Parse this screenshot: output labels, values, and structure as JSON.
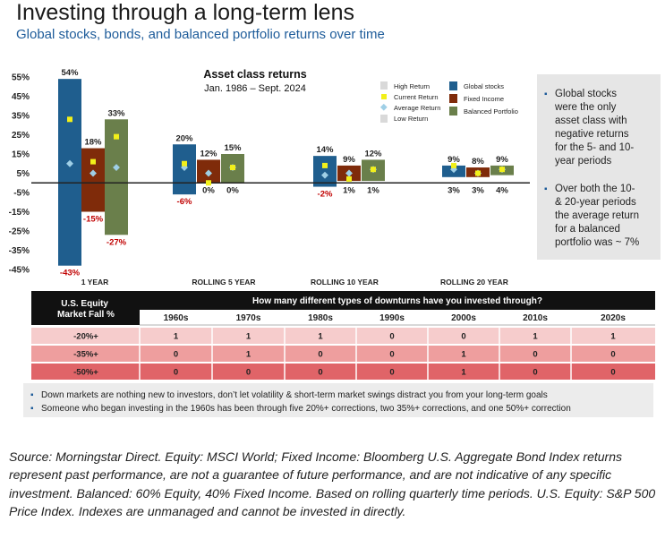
{
  "title": "Investing through a long-term lens",
  "subtitle": "Global stocks, bonds, and balanced portfolio returns over time",
  "chart_data": {
    "type": "bar",
    "title": "Asset class returns",
    "subtitle": "Jan. 1986 – Sept. 2024",
    "y_ticks": [
      "55%",
      "45%",
      "35%",
      "25%",
      "15%",
      "5%",
      "-5%",
      "-15%",
      "-25%",
      "-35%",
      "-45%"
    ],
    "ylim": [
      -45,
      55
    ],
    "categories": [
      "1 YEAR",
      "ROLLING 5 YEAR",
      "ROLLING 10 YEAR",
      "ROLLING 20 YEAR"
    ],
    "series": [
      {
        "name": "Global stocks",
        "color": "#1f5e8e",
        "high": [
          54,
          20,
          14,
          9
        ],
        "low": [
          -43,
          -6,
          -2,
          3
        ],
        "average": [
          10,
          8,
          4,
          7
        ],
        "high_labels": [
          "54%",
          "20%",
          "14%",
          "9%"
        ],
        "low_labels": [
          "-43%",
          "-6%",
          "-2%",
          "3%"
        ]
      },
      {
        "name": "Fixed Income",
        "color": "#7f2b0a",
        "high": [
          18,
          12,
          9,
          8
        ],
        "low": [
          -15,
          0,
          1,
          3
        ],
        "average": [
          5,
          5,
          5,
          5
        ],
        "high_labels": [
          "18%",
          "12%",
          "9%",
          "8%"
        ],
        "low_labels": [
          "-15%",
          "0%",
          "1%",
          "3%"
        ]
      },
      {
        "name": "Balanced Portfolio",
        "color": "#6a7f4b",
        "high": [
          33,
          15,
          12,
          9
        ],
        "low": [
          -27,
          0,
          1,
          4
        ],
        "average": [
          8,
          8,
          7,
          7
        ],
        "high_labels": [
          "33%",
          "15%",
          "12%",
          "9%"
        ],
        "low_labels": [
          "-27%",
          "0%",
          "1%",
          "4%"
        ]
      }
    ],
    "legend": {
      "high_return": "High Return",
      "current_return": "Current Return",
      "average_return": "Average Return",
      "low_return": "Low Return",
      "placement": "top-right"
    },
    "current_return_color": "#f2f01a",
    "average_return_color": "#9fcfe6",
    "grid": false
  },
  "side_notes": [
    [
      "Global stocks",
      "were the only",
      "asset class with",
      "negative returns",
      "for the 5- and 10-",
      "year periods"
    ],
    [
      "Over both the 10-",
      "& 20-year periods",
      "the average return",
      "for a balanced",
      "portfolio was ~ 7%"
    ]
  ],
  "table": {
    "row_header": [
      "U.S. Equity",
      "Market Fall %"
    ],
    "question": "How many different types of downturns have you invested through?",
    "decades": [
      "1960s",
      "1970s",
      "1980s",
      "1990s",
      "2000s",
      "2010s",
      "2020s"
    ],
    "rows": [
      {
        "label": "-20%+",
        "values": [
          "1",
          "1",
          "1",
          "0",
          "0",
          "1",
          "1"
        ],
        "color": "#f6cccc"
      },
      {
        "label": "-35%+",
        "values": [
          "0",
          "1",
          "0",
          "0",
          "1",
          "0",
          "0"
        ],
        "color": "#ee9e9e"
      },
      {
        "label": "-50%+",
        "values": [
          "0",
          "0",
          "0",
          "0",
          "1",
          "0",
          "0"
        ],
        "color": "#e06468"
      }
    ]
  },
  "notes": [
    "Down markets are nothing new to investors, don’t let volatility & short-term market swings distract you from your long-term goals",
    "Someone who began investing in the 1960s has been through five 20%+ corrections, two 35%+ corrections, and one 50%+ correction"
  ],
  "footer": "Source: Morningstar Direct. Equity: MSCI World; Fixed Income: Bloomberg U.S. Aggregate Bond Index returns represent past performance, are not a guarantee of future performance, and are not indicative of any specific investment. Balanced: 60% Equity, 40% Fixed Income. Based on rolling quarterly time periods. U.S. Equity: S&P 500 Price Index. Indexes are unmanaged and cannot be invested in directly."
}
